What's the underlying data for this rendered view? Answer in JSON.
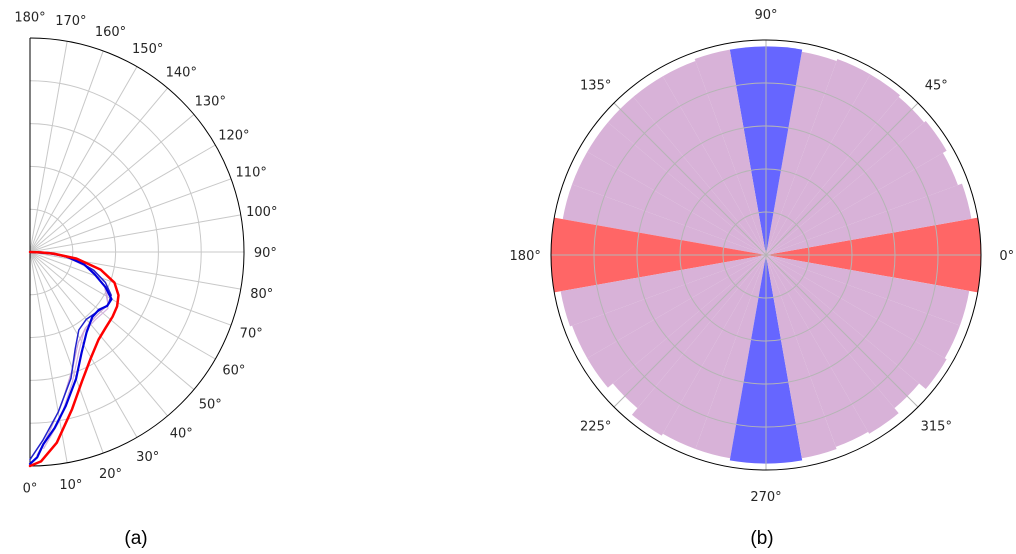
{
  "panel_labels": [
    "(a)",
    "(b)"
  ],
  "chart_data": [
    {
      "type": "line",
      "projection": "polar-half",
      "angle_range": [
        0,
        180
      ],
      "radial_range": [
        0,
        1
      ],
      "grid": true,
      "theta_tick_labels": [
        "0°",
        "10°",
        "20°",
        "30°",
        "40°",
        "50°",
        "60°",
        "70°",
        "80°",
        "90°",
        "100°",
        "110°",
        "120°",
        "130°",
        "140°",
        "150°",
        "160°",
        "170°",
        "180°"
      ],
      "theta_tick_values": [
        0,
        10,
        20,
        30,
        40,
        50,
        60,
        70,
        80,
        90,
        100,
        110,
        120,
        130,
        140,
        150,
        160,
        170,
        180
      ],
      "radial_grid": [
        0.2,
        0.4,
        0.6,
        0.8
      ],
      "series": [
        {
          "color": "#ff0000",
          "width": 2.5,
          "points": [
            [
              0,
              1.0
            ],
            [
              3,
              0.98
            ],
            [
              8,
              0.9
            ],
            [
              15,
              0.76
            ],
            [
              22,
              0.65
            ],
            [
              30,
              0.57
            ],
            [
              38,
              0.52
            ],
            [
              45,
              0.5
            ],
            [
              52,
              0.49
            ],
            [
              58,
              0.48
            ],
            [
              64,
              0.46
            ],
            [
              70,
              0.42
            ],
            [
              76,
              0.34
            ],
            [
              82,
              0.22
            ],
            [
              86,
              0.11
            ],
            [
              88,
              0.05
            ],
            [
              90,
              0.0
            ]
          ]
        },
        {
          "color": "#0000dd",
          "width": 2.2,
          "points": [
            [
              0,
              0.99
            ],
            [
              2,
              0.96
            ],
            [
              4,
              0.9
            ],
            [
              8,
              0.83
            ],
            [
              13,
              0.74
            ],
            [
              20,
              0.63
            ],
            [
              27,
              0.53
            ],
            [
              35,
              0.46
            ],
            [
              44,
              0.42
            ],
            [
              50,
              0.42
            ],
            [
              55,
              0.44
            ],
            [
              60,
              0.44
            ],
            [
              65,
              0.39
            ],
            [
              71,
              0.32
            ],
            [
              77,
              0.26
            ],
            [
              83,
              0.17
            ],
            [
              87,
              0.09
            ],
            [
              90,
              0.0
            ]
          ]
        },
        {
          "color": "#2222cc",
          "width": 1.5,
          "points": [
            [
              0,
              0.97
            ],
            [
              4,
              0.88
            ],
            [
              10,
              0.76
            ],
            [
              18,
              0.62
            ],
            [
              25,
              0.5
            ],
            [
              32,
              0.43
            ],
            [
              40,
              0.41
            ],
            [
              48,
              0.42
            ],
            [
              56,
              0.44
            ],
            [
              62,
              0.43
            ],
            [
              68,
              0.38
            ],
            [
              74,
              0.31
            ],
            [
              80,
              0.22
            ],
            [
              85,
              0.13
            ],
            [
              90,
              0.0
            ]
          ]
        },
        {
          "color": "#c9a3d6",
          "width": 1.2,
          "points": [
            [
              2,
              0.95
            ],
            [
              6,
              0.85
            ],
            [
              12,
              0.72
            ],
            [
              20,
              0.58
            ],
            [
              28,
              0.48
            ],
            [
              36,
              0.44
            ],
            [
              46,
              0.43
            ],
            [
              56,
              0.44
            ],
            [
              66,
              0.38
            ],
            [
              76,
              0.27
            ],
            [
              84,
              0.15
            ],
            [
              90,
              0.02
            ]
          ]
        },
        {
          "color": "#d6b3e0",
          "width": 1.2,
          "points": [
            [
              4,
              0.92
            ],
            [
              10,
              0.8
            ],
            [
              18,
              0.64
            ],
            [
              26,
              0.52
            ],
            [
              34,
              0.45
            ],
            [
              44,
              0.44
            ],
            [
              54,
              0.45
            ],
            [
              64,
              0.4
            ],
            [
              74,
              0.3
            ],
            [
              83,
              0.17
            ],
            [
              90,
              0.03
            ]
          ]
        }
      ]
    },
    {
      "type": "bar",
      "projection": "polar",
      "radial_range": [
        0,
        1
      ],
      "grid": true,
      "theta_tick_labels": [
        "0°",
        "45°",
        "90°",
        "135°",
        "180°",
        "225°",
        "270°",
        "315°"
      ],
      "theta_tick_values": [
        0,
        45,
        90,
        135,
        180,
        225,
        270,
        315
      ],
      "radial_grid": [
        0.2,
        0.4,
        0.6,
        0.8
      ],
      "bars": [
        {
          "start": -10,
          "end": 10,
          "value": 1.0,
          "color": "#ff6666"
        },
        {
          "start": 10,
          "end": 20,
          "value": 0.97,
          "color": "#d8b2d8"
        },
        {
          "start": 20,
          "end": 30,
          "value": 0.95,
          "color": "#d8b2d8"
        },
        {
          "start": 30,
          "end": 40,
          "value": 0.97,
          "color": "#d8b2d8"
        },
        {
          "start": 40,
          "end": 50,
          "value": 0.96,
          "color": "#d8b2d8"
        },
        {
          "start": 50,
          "end": 60,
          "value": 0.97,
          "color": "#d8b2d8"
        },
        {
          "start": 60,
          "end": 70,
          "value": 0.97,
          "color": "#d8b2d8"
        },
        {
          "start": 70,
          "end": 80,
          "value": 0.96,
          "color": "#d8b2d8"
        },
        {
          "start": 80,
          "end": 100,
          "value": 0.97,
          "color": "#6666ff"
        },
        {
          "start": 100,
          "end": 110,
          "value": 0.97,
          "color": "#d8b2d8"
        },
        {
          "start": 110,
          "end": 120,
          "value": 0.96,
          "color": "#d8b2d8"
        },
        {
          "start": 120,
          "end": 130,
          "value": 0.96,
          "color": "#d8b2d8"
        },
        {
          "start": 130,
          "end": 140,
          "value": 0.96,
          "color": "#d8b2d8"
        },
        {
          "start": 140,
          "end": 150,
          "value": 0.96,
          "color": "#d8b2d8"
        },
        {
          "start": 150,
          "end": 160,
          "value": 0.96,
          "color": "#d8b2d8"
        },
        {
          "start": 160,
          "end": 170,
          "value": 0.96,
          "color": "#d8b2d8"
        },
        {
          "start": 170,
          "end": 190,
          "value": 1.0,
          "color": "#ff6666"
        },
        {
          "start": 190,
          "end": 200,
          "value": 0.97,
          "color": "#d8b2d8"
        },
        {
          "start": 200,
          "end": 210,
          "value": 0.96,
          "color": "#d8b2d8"
        },
        {
          "start": 210,
          "end": 220,
          "value": 0.96,
          "color": "#d8b2d8"
        },
        {
          "start": 220,
          "end": 230,
          "value": 0.93,
          "color": "#d8b2d8"
        },
        {
          "start": 230,
          "end": 240,
          "value": 0.97,
          "color": "#d8b2d8"
        },
        {
          "start": 240,
          "end": 250,
          "value": 0.96,
          "color": "#d8b2d8"
        },
        {
          "start": 250,
          "end": 260,
          "value": 0.96,
          "color": "#d8b2d8"
        },
        {
          "start": 260,
          "end": 280,
          "value": 0.97,
          "color": "#6666ff"
        },
        {
          "start": 280,
          "end": 290,
          "value": 0.96,
          "color": "#d8b2d8"
        },
        {
          "start": 290,
          "end": 300,
          "value": 0.95,
          "color": "#d8b2d8"
        },
        {
          "start": 300,
          "end": 310,
          "value": 0.96,
          "color": "#d8b2d8"
        },
        {
          "start": 310,
          "end": 320,
          "value": 0.93,
          "color": "#d8b2d8"
        },
        {
          "start": 320,
          "end": 330,
          "value": 0.97,
          "color": "#d8b2d8"
        },
        {
          "start": 330,
          "end": 340,
          "value": 0.96,
          "color": "#d8b2d8"
        },
        {
          "start": 340,
          "end": 350,
          "value": 0.96,
          "color": "#d8b2d8"
        }
      ]
    }
  ]
}
